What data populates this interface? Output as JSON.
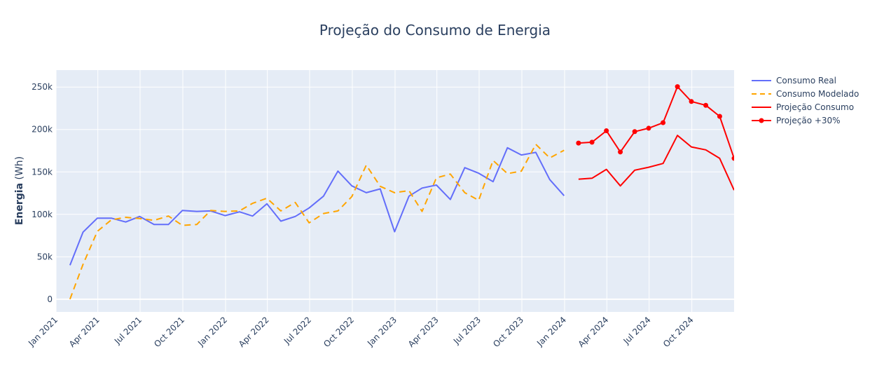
{
  "chart_data": {
    "type": "line",
    "title": "Projeção do Consumo de Energia",
    "ylabel_bold": "Energia",
    "ylabel_unit": " (Wh)",
    "xlabel": "",
    "x_start": "2021-01-01",
    "x_end": "2024-12-31",
    "ylim": [
      -15000,
      270000
    ],
    "y_ticks": [
      0,
      50000,
      100000,
      150000,
      200000,
      250000
    ],
    "y_tick_labels": [
      "0",
      "50k",
      "100k",
      "150k",
      "200k",
      "250k"
    ],
    "x_ticks": [
      {
        "date": "2021-01-01",
        "label": "Jan 2021"
      },
      {
        "date": "2021-04-01",
        "label": "Apr 2021"
      },
      {
        "date": "2021-07-01",
        "label": "Jul 2021"
      },
      {
        "date": "2021-10-01",
        "label": "Oct 2021"
      },
      {
        "date": "2022-01-01",
        "label": "Jan 2022"
      },
      {
        "date": "2022-04-01",
        "label": "Apr 2022"
      },
      {
        "date": "2022-07-01",
        "label": "Jul 2022"
      },
      {
        "date": "2022-10-01",
        "label": "Oct 2022"
      },
      {
        "date": "2023-01-01",
        "label": "Jan 2023"
      },
      {
        "date": "2023-04-01",
        "label": "Apr 2023"
      },
      {
        "date": "2023-07-01",
        "label": "Jul 2023"
      },
      {
        "date": "2023-10-01",
        "label": "Oct 2023"
      },
      {
        "date": "2024-01-01",
        "label": "Jan 2024"
      },
      {
        "date": "2024-04-01",
        "label": "Apr 2024"
      },
      {
        "date": "2024-07-01",
        "label": "Jul 2024"
      },
      {
        "date": "2024-10-01",
        "label": "Oct 2024"
      }
    ],
    "series": [
      {
        "name": "Consumo Real",
        "color": "#636efa",
        "style": "solid",
        "markers": false,
        "x": [
          "2021-01-31",
          "2021-02-28",
          "2021-03-31",
          "2021-04-30",
          "2021-05-31",
          "2021-06-30",
          "2021-07-31",
          "2021-08-31",
          "2021-09-30",
          "2021-10-31",
          "2021-11-30",
          "2021-12-31",
          "2022-01-31",
          "2022-02-28",
          "2022-03-31",
          "2022-04-30",
          "2022-05-31",
          "2022-06-30",
          "2022-07-31",
          "2022-08-31",
          "2022-09-30",
          "2022-10-31",
          "2022-11-30",
          "2022-12-31",
          "2023-01-31",
          "2023-02-28",
          "2023-03-31",
          "2023-04-30",
          "2023-05-31",
          "2023-06-30",
          "2023-07-31",
          "2023-08-31",
          "2023-09-30",
          "2023-10-31",
          "2023-11-30",
          "2023-12-31"
        ],
        "y": [
          40000,
          79000,
          95500,
          95500,
          91000,
          97500,
          88000,
          88000,
          104500,
          103500,
          104000,
          98500,
          103000,
          98000,
          112500,
          92000,
          97500,
          107500,
          121500,
          151000,
          133500,
          125500,
          130000,
          79500,
          121500,
          131000,
          134500,
          117500,
          155000,
          148500,
          138500,
          178500,
          170000,
          173000,
          141000,
          122000
        ]
      },
      {
        "name": "Consumo Modelado",
        "color": "#ffa500",
        "style": "dash",
        "markers": false,
        "x": [
          "2021-01-31",
          "2021-02-28",
          "2021-03-31",
          "2021-04-30",
          "2021-05-31",
          "2021-06-30",
          "2021-07-31",
          "2021-08-31",
          "2021-09-30",
          "2021-10-31",
          "2021-11-30",
          "2021-12-31",
          "2022-01-31",
          "2022-02-28",
          "2022-03-31",
          "2022-04-30",
          "2022-05-31",
          "2022-06-30",
          "2022-07-31",
          "2022-08-31",
          "2022-09-30",
          "2022-10-31",
          "2022-11-30",
          "2022-12-31",
          "2023-01-31",
          "2023-02-28",
          "2023-03-31",
          "2023-04-30",
          "2023-05-31",
          "2023-06-30",
          "2023-07-31",
          "2023-08-31",
          "2023-09-30",
          "2023-10-31",
          "2023-11-30",
          "2023-12-31"
        ],
        "y": [
          0,
          41000,
          80000,
          93500,
          96500,
          95000,
          93000,
          98000,
          87000,
          88000,
          104500,
          103500,
          104000,
          113000,
          119000,
          104000,
          114000,
          90000,
          101000,
          104000,
          121000,
          158000,
          133000,
          125500,
          128000,
          103500,
          143000,
          147500,
          125500,
          116500,
          163500,
          148000,
          151000,
          182500,
          166500,
          175500
        ]
      },
      {
        "name": "Projeção Consumo",
        "color": "#ff0000",
        "style": "solid",
        "markers": false,
        "x": [
          "2024-01-31",
          "2024-02-29",
          "2024-03-31",
          "2024-04-30",
          "2024-05-31",
          "2024-06-30",
          "2024-07-31",
          "2024-08-31",
          "2024-09-30",
          "2024-10-31",
          "2024-11-30",
          "2024-12-31"
        ],
        "y": [
          141500,
          142500,
          153000,
          133500,
          152000,
          155500,
          160000,
          193000,
          179500,
          176000,
          166000,
          128500
        ]
      },
      {
        "name": "Projeção +30%",
        "color": "#ff0000",
        "style": "solid",
        "markers": true,
        "x": [
          "2024-01-31",
          "2024-02-29",
          "2024-03-31",
          "2024-04-30",
          "2024-05-31",
          "2024-06-30",
          "2024-07-31",
          "2024-08-31",
          "2024-09-30",
          "2024-10-31",
          "2024-11-30",
          "2024-12-31"
        ],
        "y": [
          184000,
          185000,
          198500,
          173500,
          197500,
          201500,
          208000,
          250500,
          233000,
          228500,
          215500,
          166000
        ]
      }
    ],
    "legend_position": "top-right"
  }
}
